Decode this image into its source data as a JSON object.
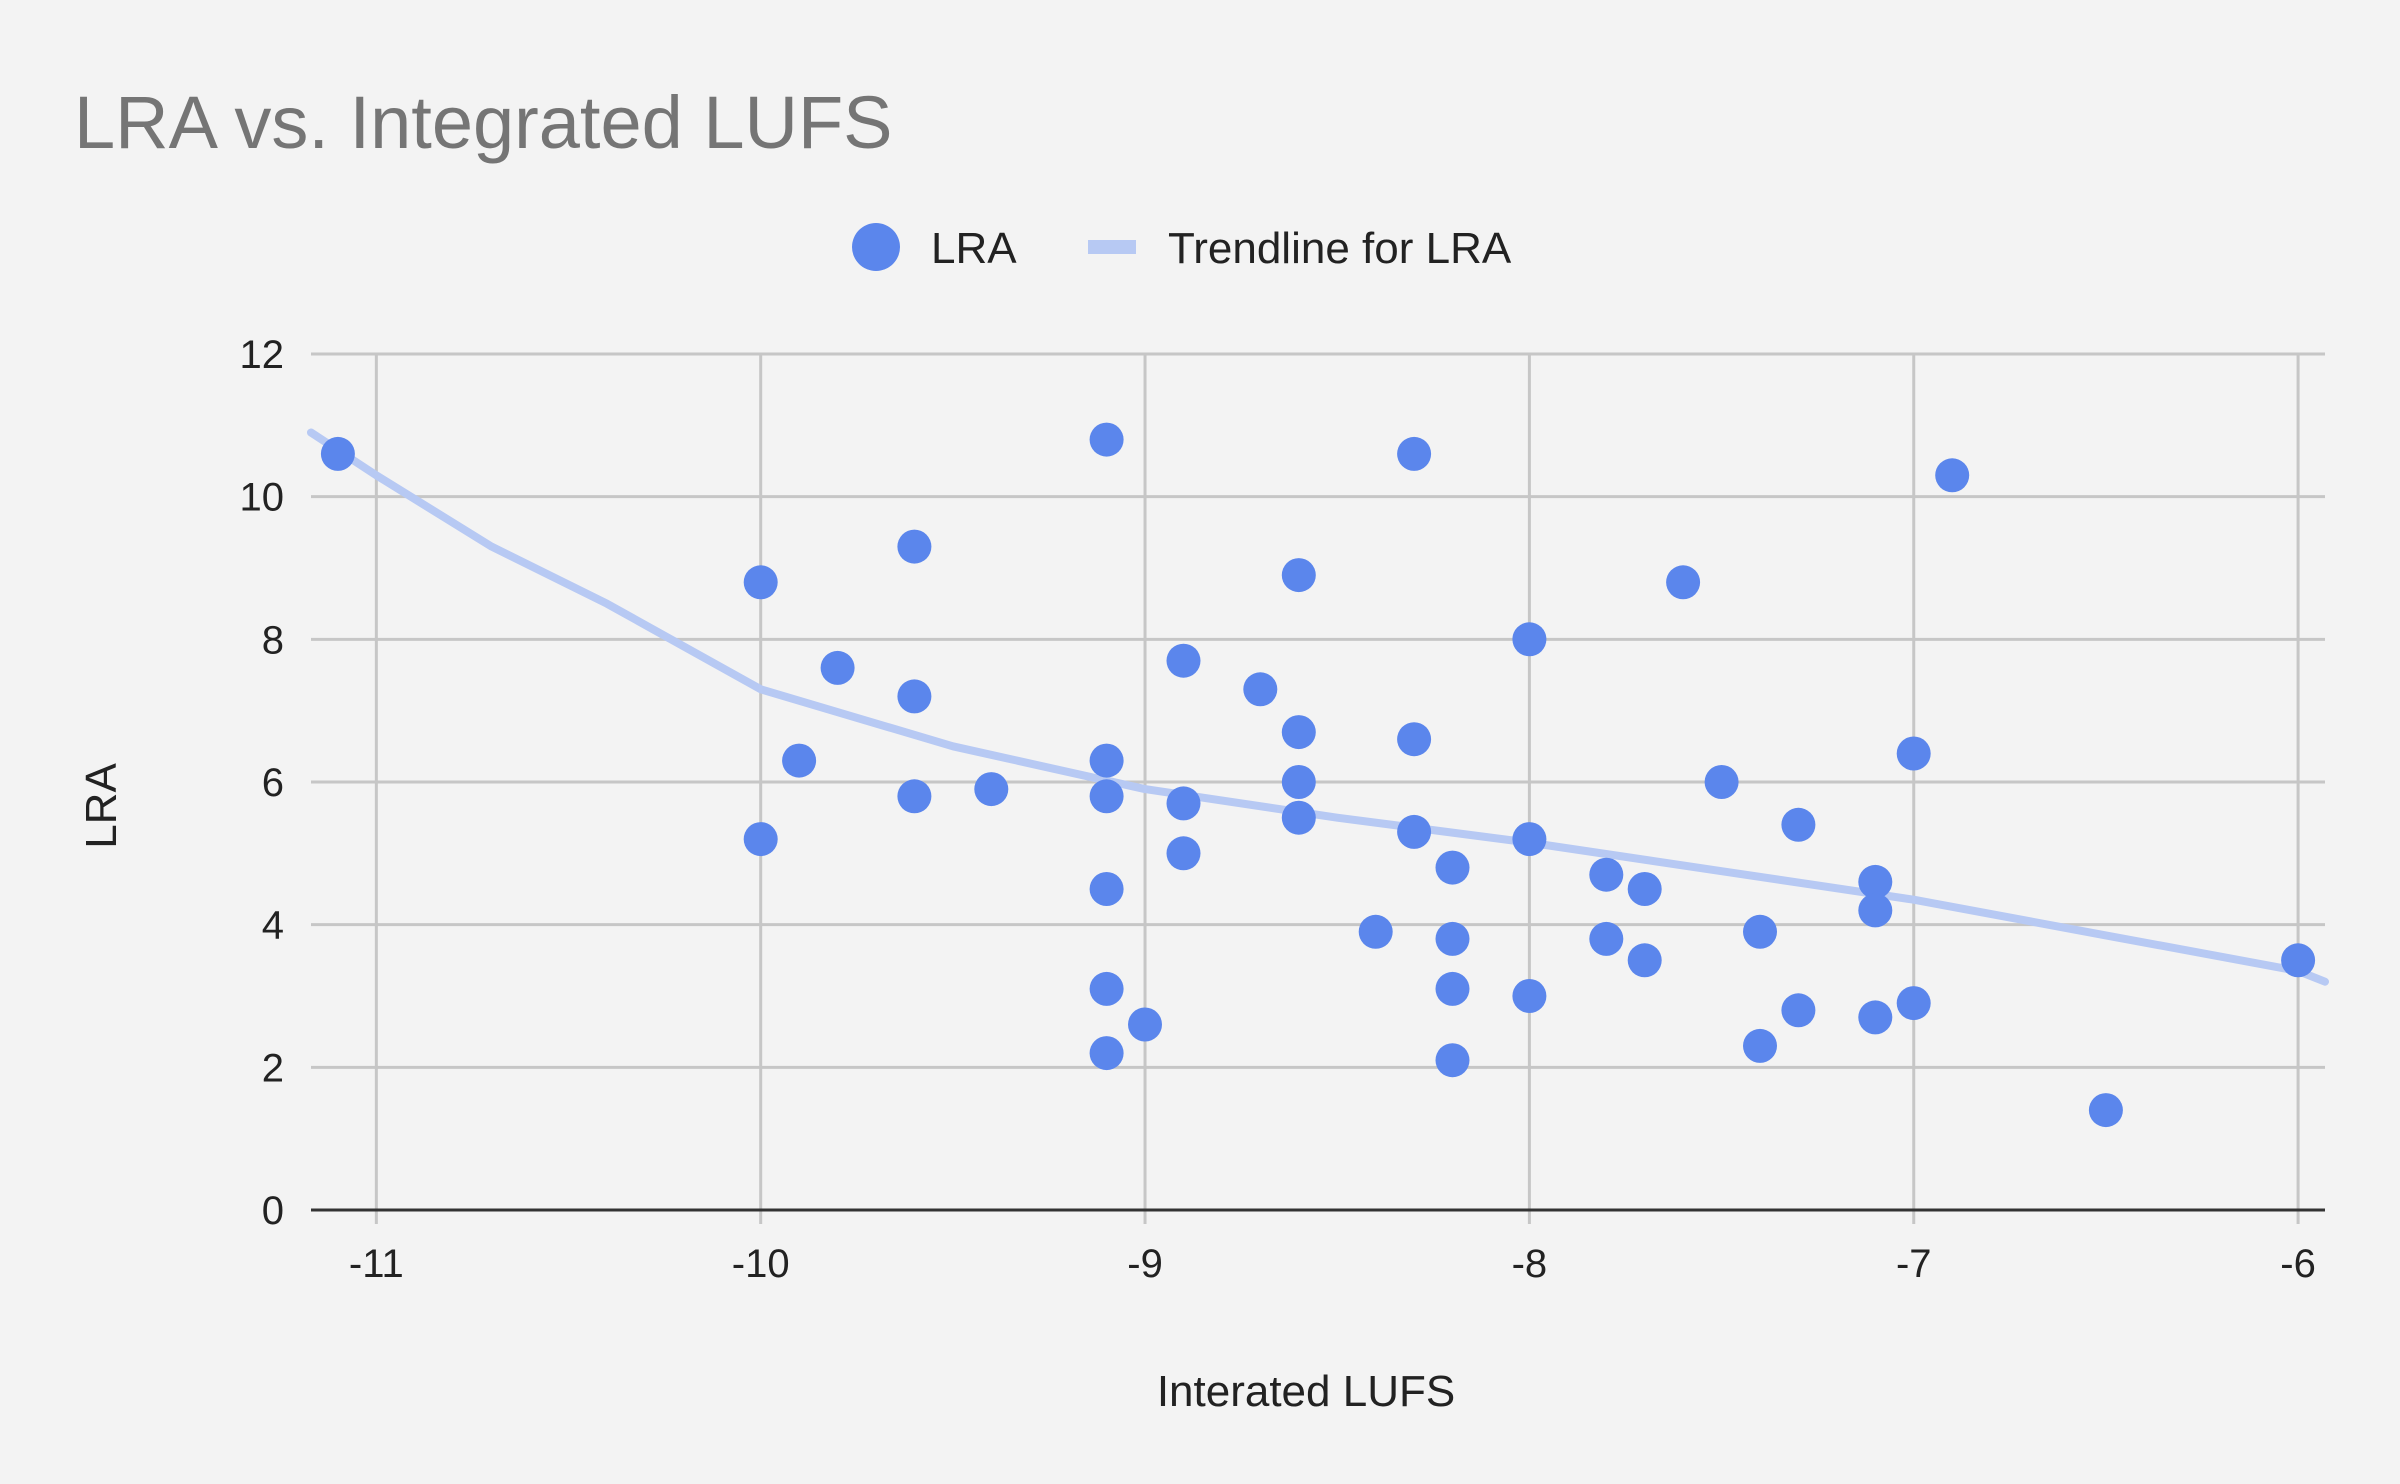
{
  "chart_data": {
    "type": "scatter",
    "title": "LRA vs. Integrated LUFS",
    "xlabel": "Interated LUFS",
    "ylabel": "LRA",
    "xlim": [
      -11.17,
      -5.93
    ],
    "ylim": [
      0,
      12
    ],
    "xticks": [
      -11,
      -10,
      -9,
      -8,
      -7,
      -6
    ],
    "yticks": [
      0,
      2,
      4,
      6,
      8,
      10,
      12
    ],
    "grid": true,
    "legend_position": "top-center",
    "series": [
      {
        "name": "LRA",
        "color": "#5b86ec",
        "points": [
          [
            -11.1,
            10.6
          ],
          [
            -10.0,
            8.8
          ],
          [
            -10.0,
            5.2
          ],
          [
            -9.9,
            6.3
          ],
          [
            -9.8,
            7.6
          ],
          [
            -9.6,
            9.3
          ],
          [
            -9.6,
            7.2
          ],
          [
            -9.6,
            5.8
          ],
          [
            -9.4,
            5.9
          ],
          [
            -9.1,
            10.8
          ],
          [
            -9.1,
            6.3
          ],
          [
            -9.1,
            5.8
          ],
          [
            -9.1,
            4.5
          ],
          [
            -9.1,
            3.1
          ],
          [
            -9.1,
            2.2
          ],
          [
            -9.0,
            2.6
          ],
          [
            -8.9,
            7.7
          ],
          [
            -8.9,
            5.7
          ],
          [
            -8.9,
            5.0
          ],
          [
            -8.7,
            7.3
          ],
          [
            -8.6,
            8.9
          ],
          [
            -8.6,
            6.7
          ],
          [
            -8.6,
            6.0
          ],
          [
            -8.6,
            5.5
          ],
          [
            -8.4,
            3.9
          ],
          [
            -8.3,
            10.6
          ],
          [
            -8.3,
            6.6
          ],
          [
            -8.3,
            5.3
          ],
          [
            -8.2,
            4.8
          ],
          [
            -8.2,
            3.8
          ],
          [
            -8.2,
            3.1
          ],
          [
            -8.2,
            2.1
          ],
          [
            -8.0,
            8.0
          ],
          [
            -8.0,
            5.2
          ],
          [
            -8.0,
            3.0
          ],
          [
            -7.8,
            4.7
          ],
          [
            -7.8,
            3.8
          ],
          [
            -7.7,
            4.5
          ],
          [
            -7.7,
            3.5
          ],
          [
            -7.6,
            8.8
          ],
          [
            -7.5,
            6.0
          ],
          [
            -7.4,
            3.9
          ],
          [
            -7.4,
            2.3
          ],
          [
            -7.3,
            5.4
          ],
          [
            -7.3,
            2.8
          ],
          [
            -7.1,
            4.6
          ],
          [
            -7.1,
            4.2
          ],
          [
            -7.1,
            2.7
          ],
          [
            -7.0,
            6.4
          ],
          [
            -7.0,
            2.9
          ],
          [
            -6.9,
            10.3
          ],
          [
            -6.5,
            1.4
          ],
          [
            -6.0,
            3.5
          ]
        ]
      },
      {
        "name": "Trendline for LRA",
        "type": "trendline",
        "color": "#b7c9f3",
        "points": [
          [
            -11.17,
            10.9
          ],
          [
            -11.0,
            10.3
          ],
          [
            -10.7,
            9.3
          ],
          [
            -10.4,
            8.5
          ],
          [
            -10.0,
            7.3
          ],
          [
            -9.5,
            6.5
          ],
          [
            -9.0,
            5.9
          ],
          [
            -8.5,
            5.5
          ],
          [
            -8.0,
            5.15
          ],
          [
            -7.5,
            4.75
          ],
          [
            -7.0,
            4.35
          ],
          [
            -6.5,
            3.85
          ],
          [
            -6.0,
            3.35
          ],
          [
            -5.93,
            3.2
          ]
        ]
      }
    ]
  }
}
